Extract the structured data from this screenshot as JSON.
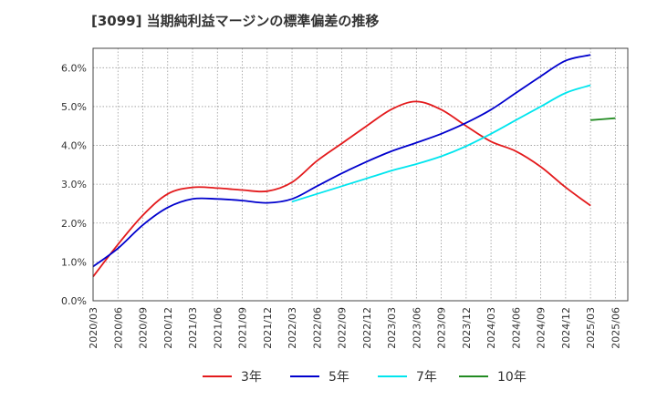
{
  "chart_data": {
    "type": "line",
    "title": "[3099]  当期純利益マージンの標準偏差の推移",
    "xlabel": "",
    "ylabel": "",
    "x": [
      "2020/03",
      "2020/06",
      "2020/09",
      "2020/12",
      "2021/03",
      "2021/06",
      "2021/09",
      "2021/12",
      "2022/03",
      "2022/06",
      "2022/09",
      "2022/12",
      "2023/03",
      "2023/06",
      "2023/09",
      "2023/12",
      "2024/03",
      "2024/06",
      "2024/09",
      "2024/12",
      "2025/03",
      "2025/06"
    ],
    "yticks": [
      "0.0%",
      "1.0%",
      "2.0%",
      "3.0%",
      "4.0%",
      "5.0%",
      "6.0%"
    ],
    "ylim": [
      0,
      6.5
    ],
    "grid": true,
    "legend_position": "bottom",
    "series": [
      {
        "name": "3年",
        "color": "#e31a1c",
        "values": [
          0.62,
          1.45,
          2.2,
          2.75,
          2.92,
          2.9,
          2.85,
          2.82,
          3.05,
          3.6,
          4.05,
          4.5,
          4.93,
          5.13,
          4.92,
          4.5,
          4.1,
          3.85,
          3.45,
          2.92,
          2.45,
          null
        ]
      },
      {
        "name": "5年",
        "color": "#0000cd",
        "values": [
          0.88,
          1.35,
          1.95,
          2.4,
          2.62,
          2.62,
          2.58,
          2.52,
          2.62,
          2.95,
          3.28,
          3.58,
          3.85,
          4.07,
          4.3,
          4.58,
          4.92,
          5.35,
          5.78,
          6.18,
          6.33,
          null
        ]
      },
      {
        "name": "7年",
        "color": "#00e5ee",
        "values": [
          null,
          null,
          null,
          null,
          null,
          null,
          null,
          null,
          2.55,
          2.75,
          2.95,
          3.15,
          3.35,
          3.52,
          3.72,
          3.98,
          4.3,
          4.65,
          5.0,
          5.35,
          5.55,
          null
        ]
      },
      {
        "name": "10年",
        "color": "#228b22",
        "values": [
          null,
          null,
          null,
          null,
          null,
          null,
          null,
          null,
          null,
          null,
          null,
          null,
          null,
          null,
          null,
          null,
          null,
          null,
          null,
          null,
          4.65,
          4.7
        ]
      }
    ]
  }
}
